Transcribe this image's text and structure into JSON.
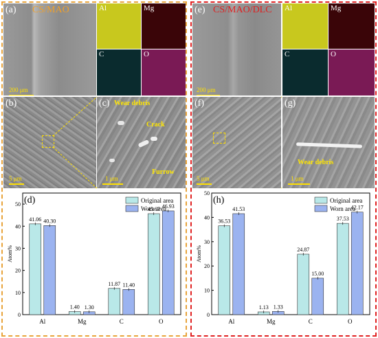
{
  "left": {
    "title": "CS/MAO",
    "label_a": "(a)",
    "label_b": "(b)",
    "label_c": "(c)",
    "label_d": "(d)",
    "map_labels": [
      "Al",
      "Mg",
      "C",
      "O"
    ],
    "map_colors": [
      "#c8c81e",
      "#3a0508",
      "#0a2b2e",
      "#7a1a55"
    ],
    "scale_a": "200 μm",
    "scale_b": "5 μm",
    "scale_c": "1 μm",
    "annotations": {
      "wear_debris": "Wear debris",
      "crack": "Crack",
      "furrow": "Furrow"
    }
  },
  "right": {
    "title": "CS/MAO/DLC",
    "label_e": "(e)",
    "label_f": "(f)",
    "label_g": "(g)",
    "label_h": "(h)",
    "map_labels": [
      "Al",
      "Mg",
      "C",
      "O"
    ],
    "map_colors": [
      "#c8c81e",
      "#3a0508",
      "#0a2b2e",
      "#7a1a55"
    ],
    "scale_e": "200 μm",
    "scale_f": "5 μm",
    "scale_g": "1 μm",
    "annotations": {
      "wear_debris": "Wear debris"
    }
  },
  "chart_data": [
    {
      "type": "bar",
      "panel": "(d)",
      "categories": [
        "Al",
        "Mg",
        "C",
        "O"
      ],
      "series": [
        {
          "name": "Original area",
          "values": [
            41.06,
            1.4,
            11.87,
            45.67
          ],
          "color": "#b9e8e8"
        },
        {
          "name": "Worn area",
          "values": [
            40.3,
            1.3,
            11.4,
            46.93
          ],
          "color": "#9bb3f0"
        }
      ],
      "value_labels": [
        [
          "41.06",
          "1.40",
          "11.87",
          "45.67"
        ],
        [
          "40.30",
          "1.30",
          "11.40",
          "46.93"
        ]
      ],
      "ylabel": "Atom%",
      "ylim": [
        0,
        55
      ],
      "yticks": [
        0,
        10,
        20,
        30,
        40,
        50
      ],
      "legend": "top-right"
    },
    {
      "type": "bar",
      "panel": "(h)",
      "categories": [
        "Al",
        "Mg",
        "C",
        "O"
      ],
      "series": [
        {
          "name": "Original area",
          "values": [
            36.53,
            1.13,
            24.87,
            37.53
          ],
          "color": "#b9e8e8"
        },
        {
          "name": "Worn area",
          "values": [
            41.53,
            1.33,
            15.0,
            42.17
          ],
          "color": "#9bb3f0"
        }
      ],
      "value_labels": [
        [
          "36.53",
          "1.13",
          "24.87",
          "37.53"
        ],
        [
          "41.53",
          "1.33",
          "15.00",
          "42.17"
        ]
      ],
      "ylabel": "Atom%",
      "ylim": [
        0,
        50
      ],
      "yticks": [
        0,
        10,
        20,
        30,
        40,
        50
      ],
      "legend": "top-right"
    }
  ]
}
